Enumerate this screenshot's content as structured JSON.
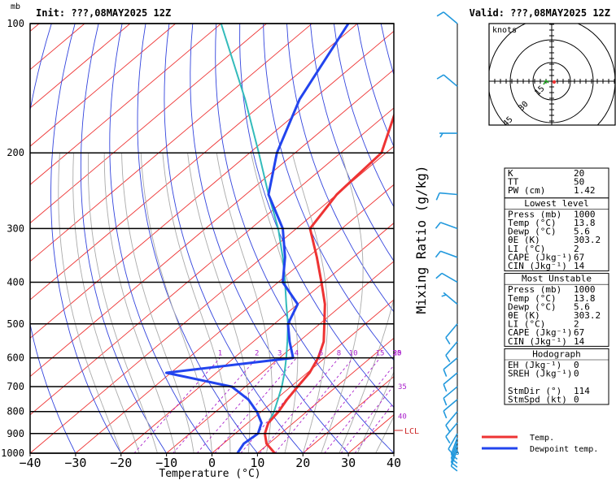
{
  "header": {
    "unit_label": "mb",
    "init_label": "Init: ???,08MAY2025  12Z",
    "valid_label": "Valid: ???,08MAY2025  12Z"
  },
  "chart_data": {
    "type": "line",
    "xlabel": "Temperature (°C)",
    "ylabel": "mb",
    "secondary_label": "Mixing Ratio (g/kg)",
    "pressure_levels": [
      100,
      200,
      300,
      400,
      500,
      600,
      700,
      800,
      900,
      1000
    ],
    "pressure_tick_labels": [
      "100",
      "200",
      "300",
      "400",
      "500",
      "600",
      "700",
      "800",
      "900",
      "1000"
    ],
    "x_ticks": [
      -40,
      -30,
      -20,
      -10,
      0,
      10,
      20,
      30,
      40
    ],
    "x_tick_labels": [
      "−40",
      "−30",
      "−20",
      "−10",
      "0",
      "10",
      "20",
      "30",
      "40"
    ],
    "xlim": [
      -40,
      40
    ],
    "ylim": [
      1000,
      100
    ],
    "y_scale": "log",
    "skew_deg_per_decade": 112,
    "mixing_ratio_labels": [
      {
        "text": "1",
        "w": 1
      },
      {
        "text": "2",
        "w": 2
      },
      {
        "text": "3",
        "w": 3
      },
      {
        "text": "4",
        "w": 4
      },
      {
        "text": "6",
        "w": 6
      },
      {
        "text": "8",
        "w": 8
      },
      {
        "text": "10",
        "w": 10
      },
      {
        "text": "15",
        "w": 15
      },
      {
        "text": "20",
        "w": 20
      },
      {
        "text": "25",
        "w": 25
      },
      {
        "text": "30",
        "w": 30
      }
    ],
    "edge_labels": [
      {
        "text": "35",
        "p": 700
      },
      {
        "text": "40",
        "p": 820
      }
    ],
    "lcl": {
      "text": "LCL",
      "p": 885
    },
    "series": [
      {
        "name": "Temp.",
        "color": "#ee3333",
        "points": [
          [
            1000,
            13.8
          ],
          [
            950,
            9.5
          ],
          [
            900,
            6.5
          ],
          [
            850,
            4.5
          ],
          [
            800,
            3.8
          ],
          [
            750,
            2.5
          ],
          [
            700,
            1.5
          ],
          [
            650,
            0.5
          ],
          [
            600,
            -1.5
          ],
          [
            550,
            -4.5
          ],
          [
            500,
            -9.0
          ],
          [
            450,
            -14.0
          ],
          [
            400,
            -20.5
          ],
          [
            350,
            -28.0
          ],
          [
            300,
            -37.0
          ],
          [
            250,
            -40.0
          ],
          [
            200,
            -41.0
          ],
          [
            150,
            -51.0
          ],
          [
            100,
            -62.0
          ]
        ]
      },
      {
        "name": "Dewpoint temp.",
        "color": "#2244ee",
        "points": [
          [
            1000,
            5.6
          ],
          [
            950,
            4.5
          ],
          [
            900,
            5.0
          ],
          [
            850,
            3.0
          ],
          [
            800,
            -1.0
          ],
          [
            750,
            -6.0
          ],
          [
            700,
            -13.0
          ],
          [
            650,
            -31.0
          ],
          [
            600,
            -7.0
          ],
          [
            550,
            -12.0
          ],
          [
            500,
            -17.0
          ],
          [
            450,
            -20.0
          ],
          [
            400,
            -29.0
          ],
          [
            350,
            -35.0
          ],
          [
            300,
            -43.0
          ],
          [
            250,
            -55.0
          ],
          [
            200,
            -64.0
          ],
          [
            150,
            -73.0
          ],
          [
            100,
            -82.0
          ]
        ]
      },
      {
        "name": "parcel",
        "color": "#33bbbb",
        "points": [
          [
            1000,
            13.8
          ],
          [
            950,
            9.5
          ],
          [
            900,
            6.5
          ],
          [
            850,
            4.5
          ],
          [
            800,
            2.8
          ],
          [
            750,
            0.5
          ],
          [
            700,
            -2.0
          ],
          [
            650,
            -5.0
          ],
          [
            600,
            -8.5
          ],
          [
            550,
            -12.5
          ],
          [
            500,
            -17.0
          ],
          [
            450,
            -22.5
          ],
          [
            400,
            -28.5
          ],
          [
            350,
            -35.5
          ],
          [
            300,
            -44.0
          ],
          [
            250,
            -55.0
          ],
          [
            200,
            -68.0
          ],
          [
            150,
            -85.0
          ],
          [
            100,
            -110.0
          ]
        ]
      }
    ],
    "wind_barbs": [
      {
        "p": 1000,
        "dir": 114,
        "spd": 0
      },
      {
        "p": 980,
        "dir": 200,
        "spd": 10
      },
      {
        "p": 960,
        "dir": 200,
        "spd": 10
      },
      {
        "p": 940,
        "dir": 200,
        "spd": 10
      },
      {
        "p": 920,
        "dir": 200,
        "spd": 10
      },
      {
        "p": 900,
        "dir": 210,
        "spd": 10
      },
      {
        "p": 850,
        "dir": 220,
        "spd": 10
      },
      {
        "p": 800,
        "dir": 220,
        "spd": 10
      },
      {
        "p": 750,
        "dir": 230,
        "spd": 10
      },
      {
        "p": 700,
        "dir": 230,
        "spd": 10
      },
      {
        "p": 650,
        "dir": 230,
        "spd": 10
      },
      {
        "p": 600,
        "dir": 230,
        "spd": 10
      },
      {
        "p": 550,
        "dir": 220,
        "spd": 10
      },
      {
        "p": 500,
        "dir": 220,
        "spd": 10
      },
      {
        "p": 450,
        "dir": 310,
        "spd": 5
      },
      {
        "p": 400,
        "dir": 300,
        "spd": 10
      },
      {
        "p": 350,
        "dir": 290,
        "spd": 10
      },
      {
        "p": 300,
        "dir": 290,
        "spd": 10
      },
      {
        "p": 250,
        "dir": 275,
        "spd": 10
      },
      {
        "p": 180,
        "dir": 270,
        "spd": 5
      },
      {
        "p": 140,
        "dir": 310,
        "spd": 10
      },
      {
        "p": 100,
        "dir": 310,
        "spd": 10
      }
    ]
  },
  "hodograph": {
    "title": "knots",
    "ring_labels": [
      "15",
      "30",
      "45"
    ]
  },
  "indices": {
    "top": [
      {
        "label": "K",
        "value": "20"
      },
      {
        "label": "TT",
        "value": "50"
      },
      {
        "label": "PW (cm)",
        "value": "1.42"
      }
    ],
    "sections": [
      {
        "title": "Lowest level",
        "rows": [
          {
            "label": "Press (mb)",
            "value": "1000"
          },
          {
            "label": "Temp (°C)",
            "value": "13.8"
          },
          {
            "label": "Dewp (°C)",
            "value": "5.6"
          },
          {
            "label": "θE (K)",
            "value": "303.2"
          },
          {
            "label": "LI (°C)",
            "value": "2"
          },
          {
            "label": "CAPE (Jkg⁻¹)",
            "value": "67"
          },
          {
            "label": "CIN (Jkg⁻¹)",
            "value": "14"
          }
        ]
      },
      {
        "title": "Most Unstable",
        "rows": [
          {
            "label": "Press (mb)",
            "value": "1000"
          },
          {
            "label": "Temp (°C)",
            "value": "13.8"
          },
          {
            "label": "Dewp (°C)",
            "value": "5.6"
          },
          {
            "label": "θE (K)",
            "value": "303.2"
          },
          {
            "label": "LI (°C)",
            "value": "2"
          },
          {
            "label": "CAPE (Jkg⁻¹)",
            "value": "67"
          },
          {
            "label": "CIN (Jkg⁻¹)",
            "value": "14"
          }
        ]
      },
      {
        "title": "Hodograph",
        "rows": [
          {
            "label": "EH (Jkg⁻¹)",
            "value": "0"
          },
          {
            "label": "SREH (Jkg⁻¹)",
            "value": "0"
          },
          {
            "label": "",
            "value": ""
          },
          {
            "label": "StmDir (°)",
            "value": "114"
          },
          {
            "label": "StmSpd (kt)",
            "value": "0"
          }
        ]
      }
    ]
  },
  "legend": {
    "items": [
      {
        "label": "Temp.",
        "color": "#ee3333"
      },
      {
        "label": "Dewpoint temp.",
        "color": "#2244ee"
      }
    ]
  }
}
